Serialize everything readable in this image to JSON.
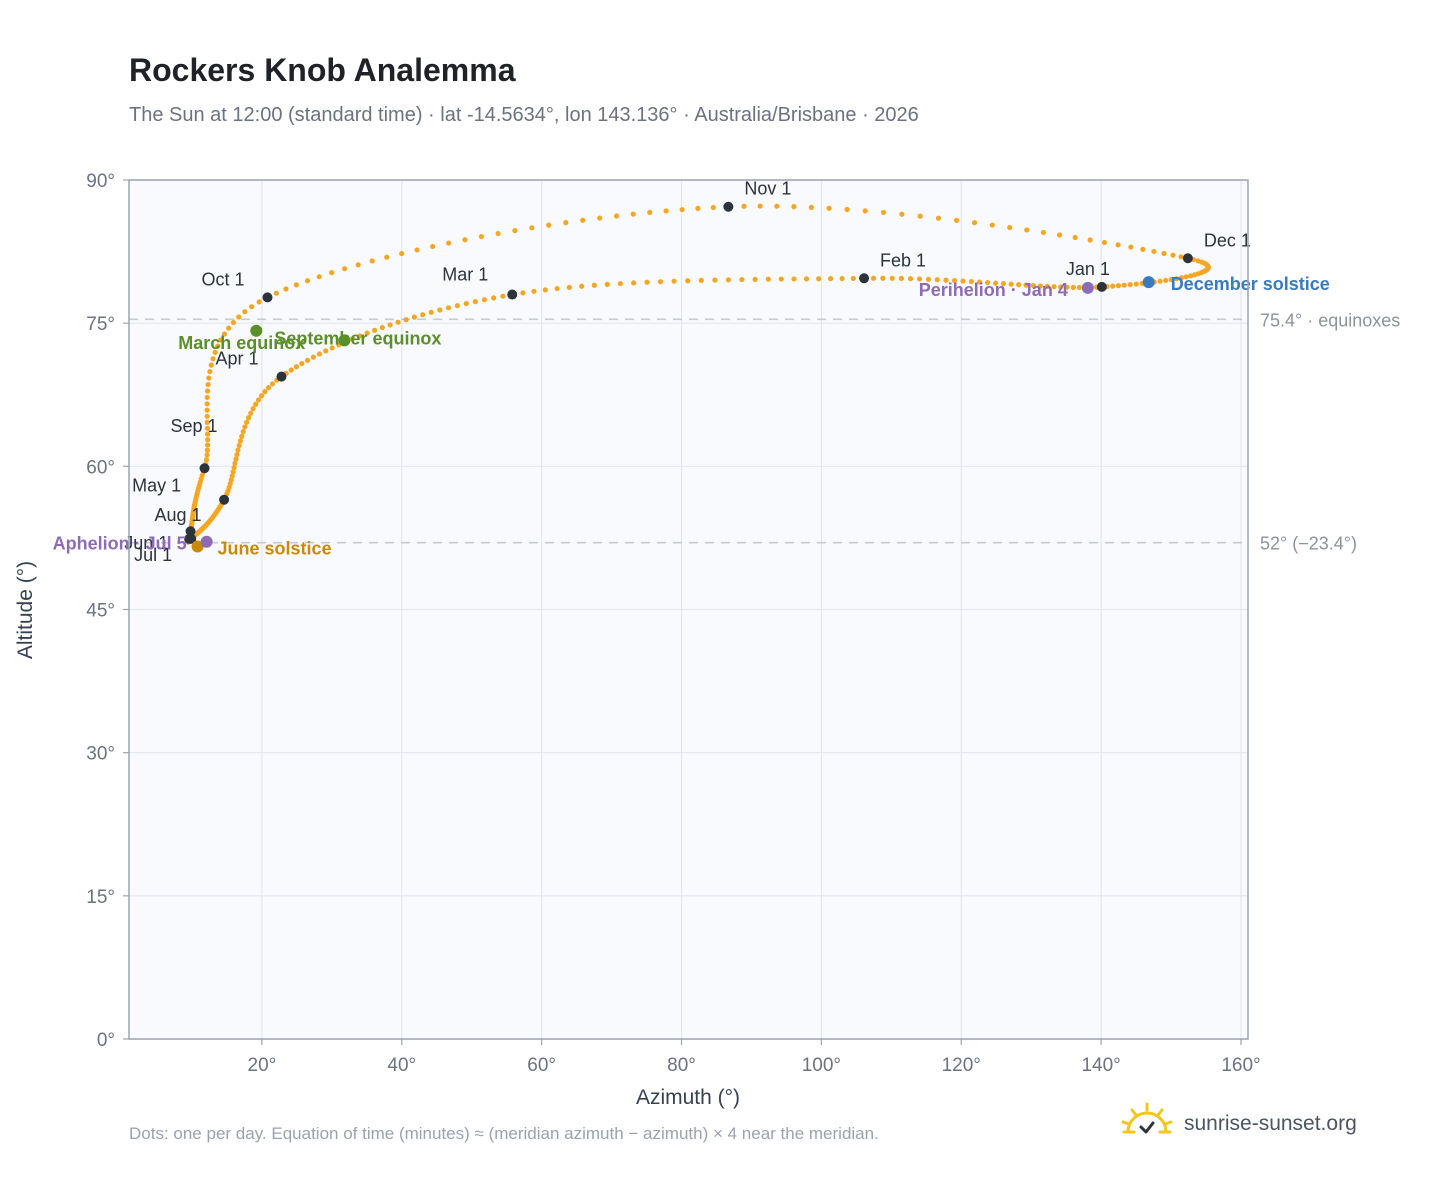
{
  "header": {
    "title": "Rockers Knob Analemma",
    "subtitle": "The Sun at 12:00 (standard time) · lat -14.5634°, lon 143.136° · Australia/Brisbane · 2026"
  },
  "footer": {
    "note": "Dots: one per day. Equation of time (minutes) ≈ (meridian azimuth − azimuth) × 4 near the meridian.",
    "brand": "sunrise-sunset.org"
  },
  "colors": {
    "curve": "#f5a623",
    "month_marker": "#2d333b",
    "equinox": "#5a8f29",
    "solstice_june": "#c98a0a",
    "solstice_december": "#3a7bbf",
    "apsis": "#8e6bb5",
    "reference_line": "#c3ccd5",
    "plot_background": "#f8fafd",
    "brand_icon": "#f5c518"
  },
  "icons": {
    "brand": "sun-check-icon"
  },
  "chart_data": {
    "type": "scatter",
    "xlabel": "Azimuth (°)",
    "ylabel": "Altitude (°)",
    "xlim": [
      1,
      161
    ],
    "ylim": [
      0,
      90
    ],
    "x_ticks": [
      20,
      40,
      60,
      80,
      100,
      120,
      140,
      160
    ],
    "x_tick_labels": [
      "20°",
      "40°",
      "60°",
      "80°",
      "100°",
      "120°",
      "140°",
      "160°"
    ],
    "y_ticks": [
      0,
      15,
      30,
      45,
      60,
      75,
      90
    ],
    "y_tick_labels": [
      "0°",
      "15°",
      "30°",
      "45°",
      "60°",
      "75°",
      "90°"
    ],
    "grid": true,
    "reference_lines": [
      {
        "y": 75.4,
        "label": "75.4° · equinoxes"
      },
      {
        "y": 52,
        "label": "52° (−23.4°)"
      }
    ],
    "month_markers": [
      {
        "label": "Jan 1",
        "x": 140.1,
        "y": 78.8
      },
      {
        "label": "Feb 1",
        "x": 106.1,
        "y": 79.7
      },
      {
        "label": "Mar 1",
        "x": 55.8,
        "y": 78.0
      },
      {
        "label": "Apr 1",
        "x": 22.8,
        "y": 69.4
      },
      {
        "label": "May 1",
        "x": 14.6,
        "y": 56.5
      },
      {
        "label": "Jun 1",
        "x": 9.9,
        "y": 52.4
      },
      {
        "label": "Jul 1",
        "x": 9.6,
        "y": 52.4
      },
      {
        "label": "Aug 1",
        "x": 9.8,
        "y": 53.2
      },
      {
        "label": "Sep 1",
        "x": 11.8,
        "y": 59.8
      },
      {
        "label": "Oct 1",
        "x": 20.8,
        "y": 77.7
      },
      {
        "label": "Nov 1",
        "x": 86.7,
        "y": 87.2
      },
      {
        "label": "Dec 1",
        "x": 152.4,
        "y": 81.8
      }
    ],
    "events": [
      {
        "label": "March equinox",
        "x": 19.2,
        "y": 74.2,
        "kind": "equinox"
      },
      {
        "label": "September equinox",
        "x": 31.8,
        "y": 73.2,
        "kind": "equinox"
      },
      {
        "label": "June solstice",
        "x": 10.8,
        "y": 51.6,
        "kind": "solstice_june"
      },
      {
        "label": "December solstice",
        "x": 146.8,
        "y": 79.3,
        "kind": "solstice_december"
      },
      {
        "label": "Perihelion · Jan 4",
        "x": 138.1,
        "y": 78.7,
        "kind": "apsis"
      },
      {
        "label": "Aphelion · Jul 5",
        "x": 12.1,
        "y": 52.1,
        "kind": "apsis"
      }
    ]
  }
}
